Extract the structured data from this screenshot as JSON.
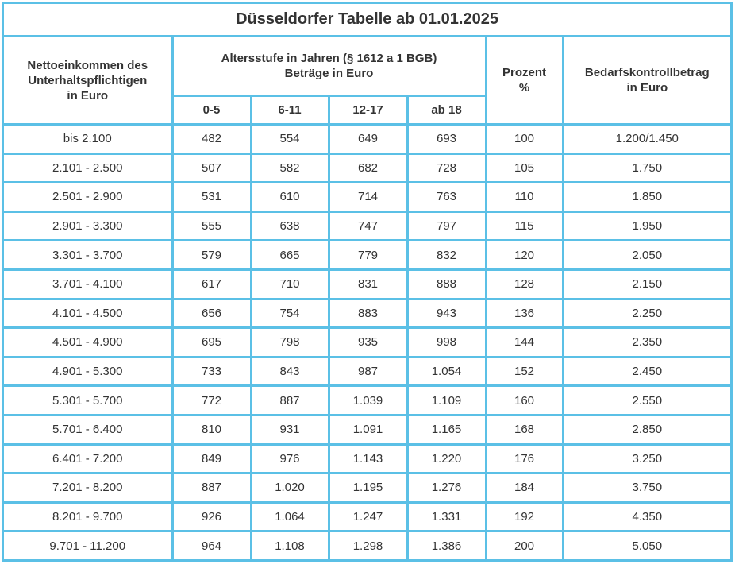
{
  "title": "Düsseldorfer Tabelle ab 01.01.2025",
  "headers": {
    "income": "Nettoeinkommen des\nUnterhaltspflichtigen\nin Euro",
    "age_group": "Altersstufe in Jahren (§ 1612 a 1 BGB)\nBeträge in Euro",
    "ages": [
      "0-5",
      "6-11",
      "12-17",
      "ab 18"
    ],
    "percent": "Prozent\n%",
    "control": "Bedarfskontrollbetrag\nin Euro"
  },
  "rows": [
    {
      "income": "bis 2.100",
      "a1": "482",
      "a2": "554",
      "a3": "649",
      "a4": "693",
      "pct": "100",
      "ctrl": "1.200/1.450"
    },
    {
      "income": "2.101 - 2.500",
      "a1": "507",
      "a2": "582",
      "a3": "682",
      "a4": "728",
      "pct": "105",
      "ctrl": "1.750"
    },
    {
      "income": "2.501 - 2.900",
      "a1": "531",
      "a2": "610",
      "a3": "714",
      "a4": "763",
      "pct": "110",
      "ctrl": "1.850"
    },
    {
      "income": "2.901 - 3.300",
      "a1": "555",
      "a2": "638",
      "a3": "747",
      "a4": "797",
      "pct": "115",
      "ctrl": "1.950"
    },
    {
      "income": "3.301 - 3.700",
      "a1": "579",
      "a2": "665",
      "a3": "779",
      "a4": "832",
      "pct": "120",
      "ctrl": "2.050"
    },
    {
      "income": "3.701 - 4.100",
      "a1": "617",
      "a2": "710",
      "a3": "831",
      "a4": "888",
      "pct": "128",
      "ctrl": "2.150"
    },
    {
      "income": "4.101 - 4.500",
      "a1": "656",
      "a2": "754",
      "a3": "883",
      "a4": "943",
      "pct": "136",
      "ctrl": "2.250"
    },
    {
      "income": "4.501 - 4.900",
      "a1": "695",
      "a2": "798",
      "a3": "935",
      "a4": "998",
      "pct": "144",
      "ctrl": "2.350"
    },
    {
      "income": "4.901 - 5.300",
      "a1": "733",
      "a2": "843",
      "a3": "987",
      "a4": "1.054",
      "pct": "152",
      "ctrl": "2.450"
    },
    {
      "income": "5.301 - 5.700",
      "a1": "772",
      "a2": "887",
      "a3": "1.039",
      "a4": "1.109",
      "pct": "160",
      "ctrl": "2.550"
    },
    {
      "income": "5.701 - 6.400",
      "a1": "810",
      "a2": "931",
      "a3": "1.091",
      "a4": "1.165",
      "pct": "168",
      "ctrl": "2.850"
    },
    {
      "income": "6.401 - 7.200",
      "a1": "849",
      "a2": "976",
      "a3": "1.143",
      "a4": "1.220",
      "pct": "176",
      "ctrl": "3.250"
    },
    {
      "income": "7.201 - 8.200",
      "a1": "887",
      "a2": "1.020",
      "a3": "1.195",
      "a4": "1.276",
      "pct": "184",
      "ctrl": "3.750"
    },
    {
      "income": "8.201 - 9.700",
      "a1": "926",
      "a2": "1.064",
      "a3": "1.247",
      "a4": "1.331",
      "pct": "192",
      "ctrl": "4.350"
    },
    {
      "income": "9.701 - 11.200",
      "a1": "964",
      "a2": "1.108",
      "a3": "1.298",
      "a4": "1.386",
      "pct": "200",
      "ctrl": "5.050"
    }
  ],
  "colors": {
    "border": "#5bc0e6",
    "text": "#333333",
    "background": "#ffffff"
  }
}
